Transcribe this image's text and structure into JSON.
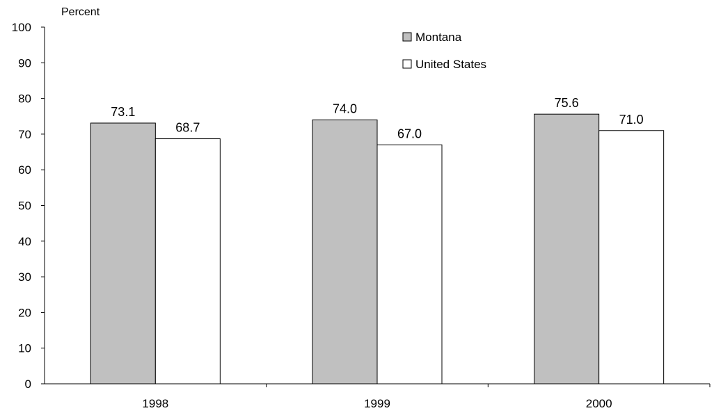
{
  "chart_data": {
    "type": "bar",
    "title": "",
    "ylabel": "Percent",
    "xlabel": "",
    "categories": [
      "1998",
      "1999",
      "2000"
    ],
    "series": [
      {
        "name": "Montana",
        "values": [
          73.1,
          74.0,
          75.6
        ],
        "value_labels": [
          "73.1",
          "74.0",
          "75.6"
        ],
        "color": "#c0c0c0"
      },
      {
        "name": "United States",
        "values": [
          68.7,
          67.0,
          71.0
        ],
        "value_labels": [
          "68.7",
          "67.0",
          "71.0"
        ],
        "color": "#ffffff"
      }
    ],
    "ylim": [
      0,
      100
    ],
    "yticks": [
      0,
      10,
      20,
      30,
      40,
      50,
      60,
      70,
      80,
      90,
      100
    ],
    "ytick_labels": [
      "0",
      "10",
      "20",
      "30",
      "40",
      "50",
      "60",
      "70",
      "80",
      "90",
      "100"
    ],
    "grid": false,
    "legend_position": "top-center"
  }
}
